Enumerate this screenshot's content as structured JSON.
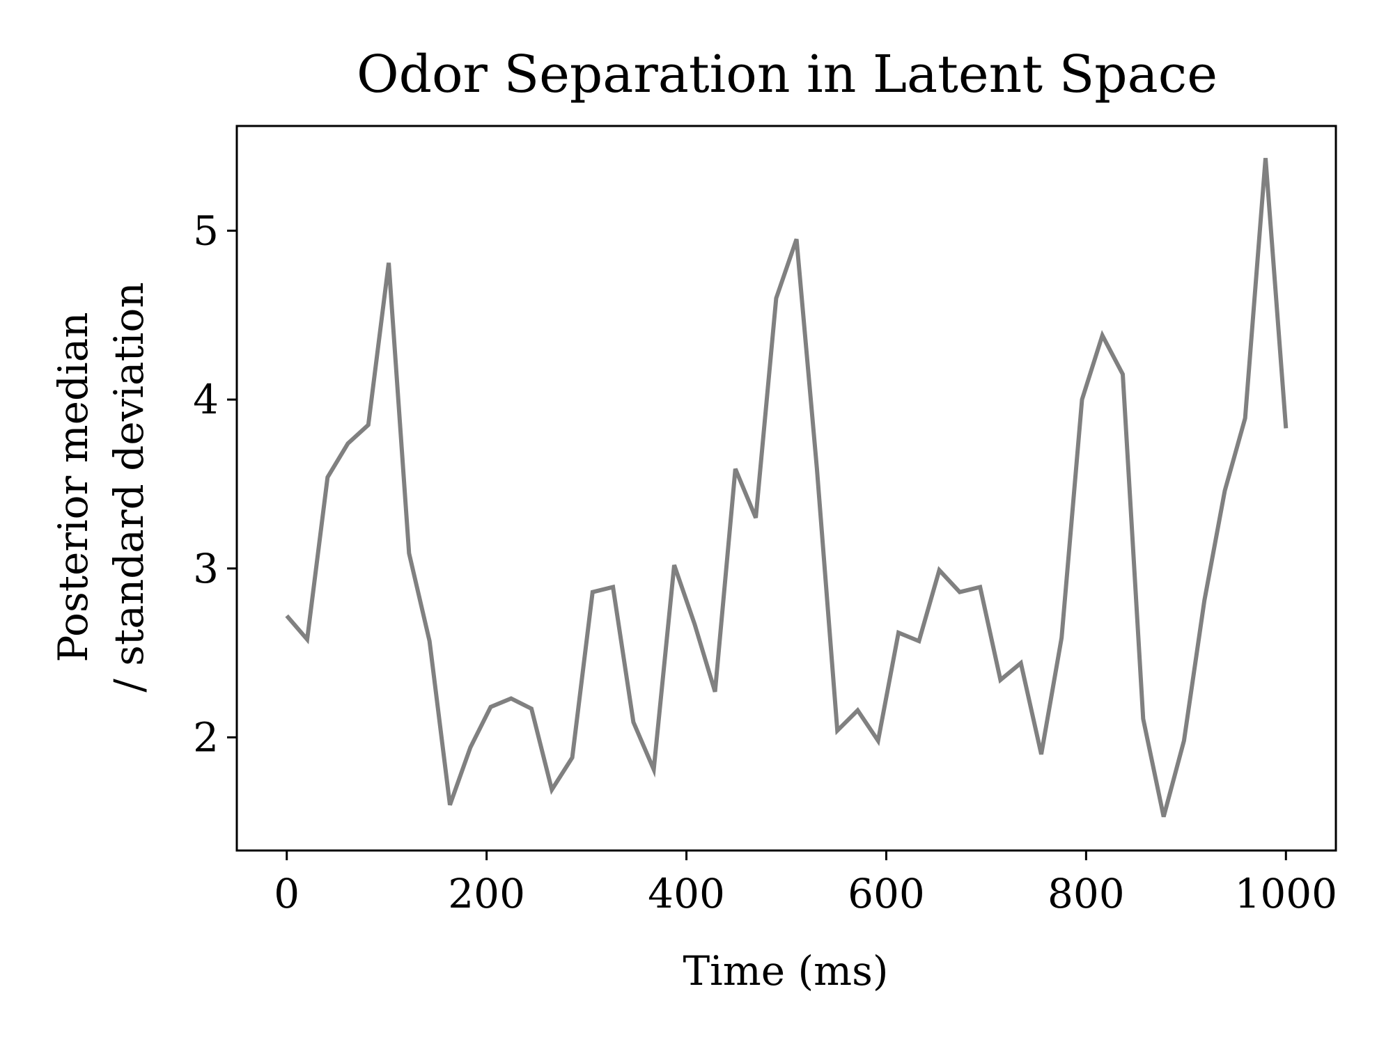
{
  "chart_data": {
    "type": "line",
    "title": "Odor Separation in Latent Space",
    "xlabel": "Time (ms)",
    "ylabel": [
      "Posterior median",
      "/ standard deviation"
    ],
    "xlim": [
      -50,
      1050
    ],
    "ylim": [
      1.33,
      5.62
    ],
    "xticks": [
      0,
      200,
      400,
      600,
      800,
      1000
    ],
    "xtick_labels": [
      "0",
      "200",
      "400",
      "600",
      "800",
      "1000"
    ],
    "yticks": [
      2,
      3,
      4,
      5
    ],
    "ytick_labels": [
      "2",
      "3",
      "4",
      "5"
    ],
    "grid": false,
    "legend": false,
    "series": [
      {
        "color": "#808080",
        "x": [
          0,
          20.4,
          40.8,
          61.2,
          81.6,
          102.0,
          122.4,
          142.9,
          163.3,
          183.7,
          204.1,
          224.5,
          244.9,
          265.3,
          285.7,
          306.1,
          326.5,
          346.9,
          367.3,
          387.8,
          408.2,
          428.6,
          449.0,
          469.4,
          489.8,
          510.2,
          530.6,
          551.0,
          571.4,
          591.8,
          612.2,
          632.7,
          653.1,
          673.5,
          693.9,
          714.3,
          734.7,
          755.1,
          775.5,
          795.9,
          816.3,
          836.7,
          857.1,
          877.6,
          898.0,
          918.4,
          938.8,
          959.2,
          979.6,
          1000
        ],
        "y": [
          2.72,
          2.58,
          3.54,
          3.74,
          3.85,
          4.81,
          3.09,
          2.57,
          1.6,
          1.94,
          2.18,
          2.23,
          2.17,
          1.69,
          1.88,
          2.86,
          2.89,
          2.09,
          1.81,
          3.02,
          2.67,
          2.27,
          3.59,
          3.3,
          4.6,
          4.95,
          3.59,
          2.04,
          2.16,
          1.98,
          2.62,
          2.57,
          2.99,
          2.86,
          2.89,
          2.34,
          2.44,
          1.9,
          2.59,
          4.0,
          4.38,
          4.15,
          2.11,
          1.53,
          1.98,
          2.81,
          3.46,
          3.89,
          5.43,
          3.83
        ]
      }
    ]
  }
}
